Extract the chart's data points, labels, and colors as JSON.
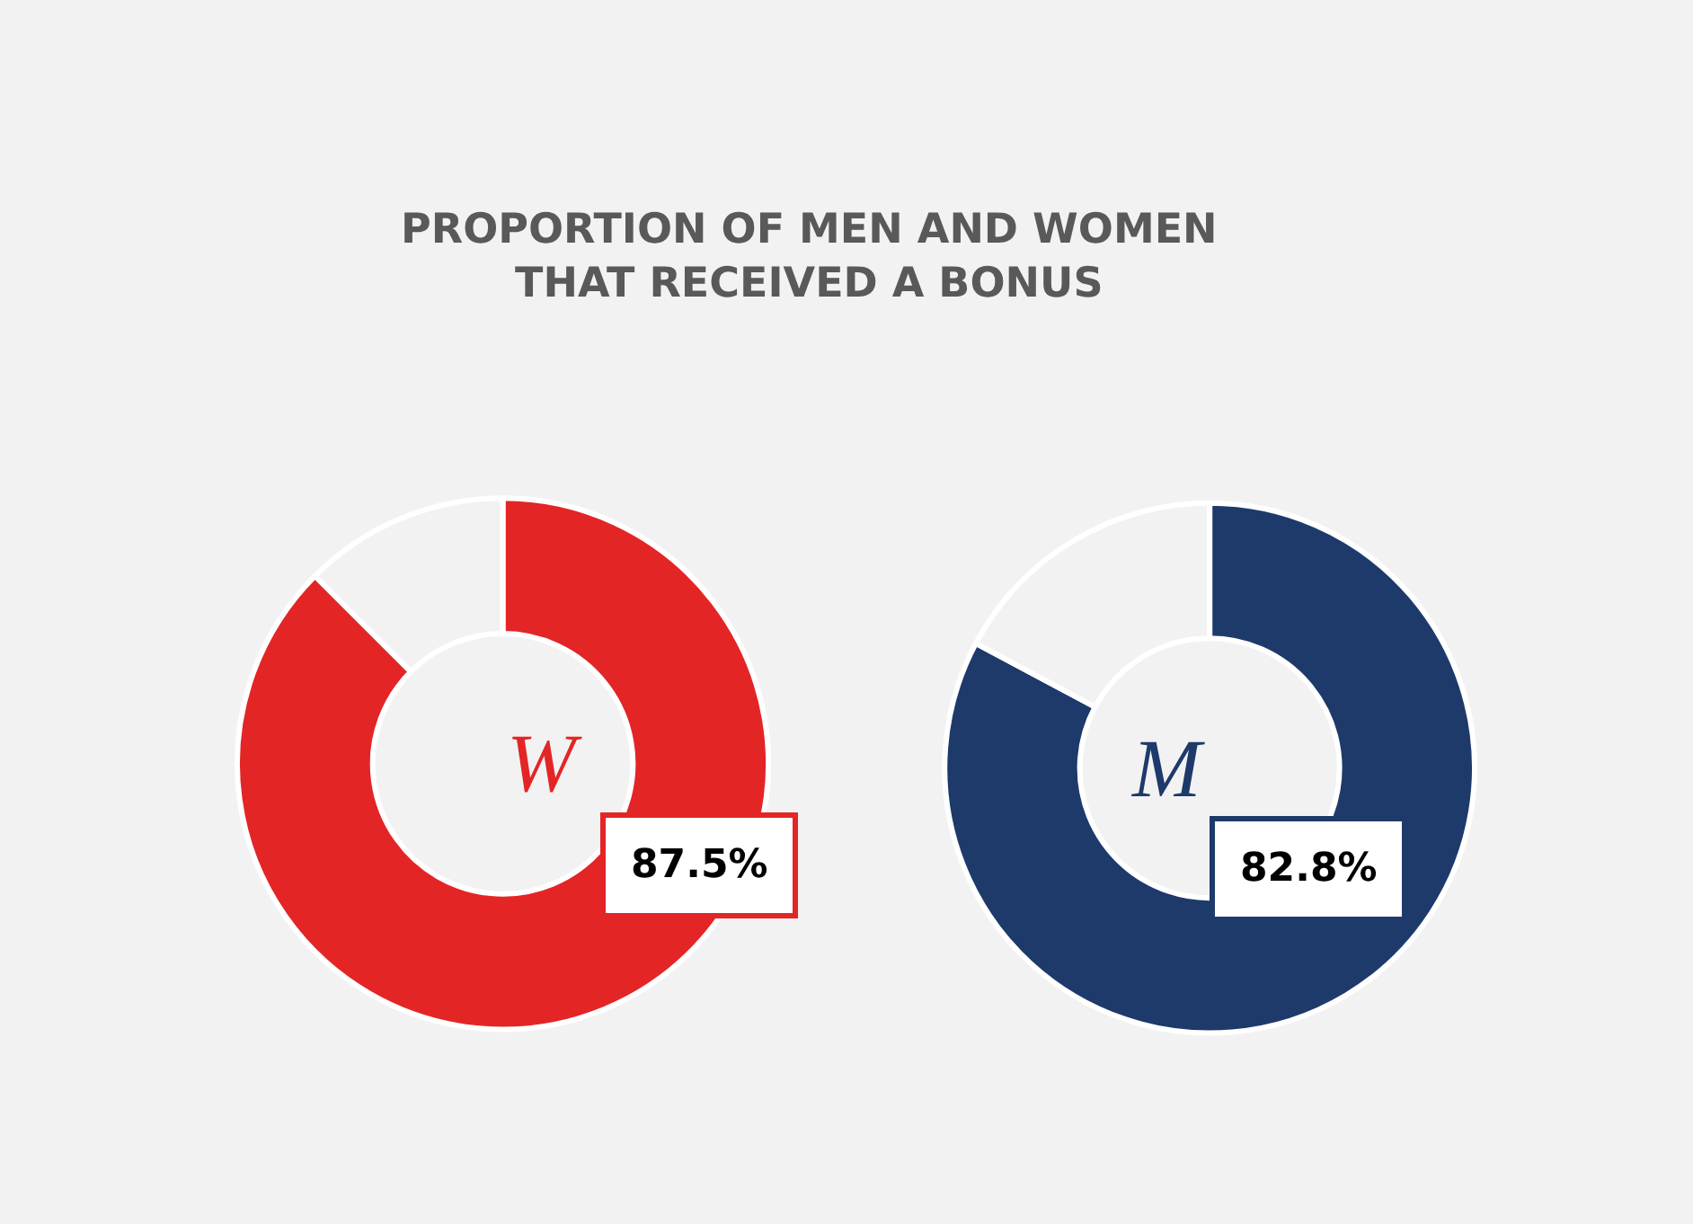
{
  "chart_data": [
    {
      "type": "donut",
      "title": "PROPORTION OF MEN AND WOMEN THAT RECEIVED A BONUS",
      "categories": [
        null,
        null
      ],
      "values": [
        87.5,
        12.5
      ],
      "colors": [
        "#e32526",
        "#f2f2f2"
      ],
      "value_labels": [
        "87.5%",
        null
      ],
      "annotations": [
        "W"
      ]
    },
    {
      "type": "donut",
      "categories": [
        null,
        null
      ],
      "values": [
        82.8,
        17.2
      ],
      "colors": [
        "#1e3a6b",
        "#f2f2f2"
      ],
      "value_labels": [
        "82.8%",
        null
      ],
      "annotations": [
        "M"
      ]
    }
  ]
}
